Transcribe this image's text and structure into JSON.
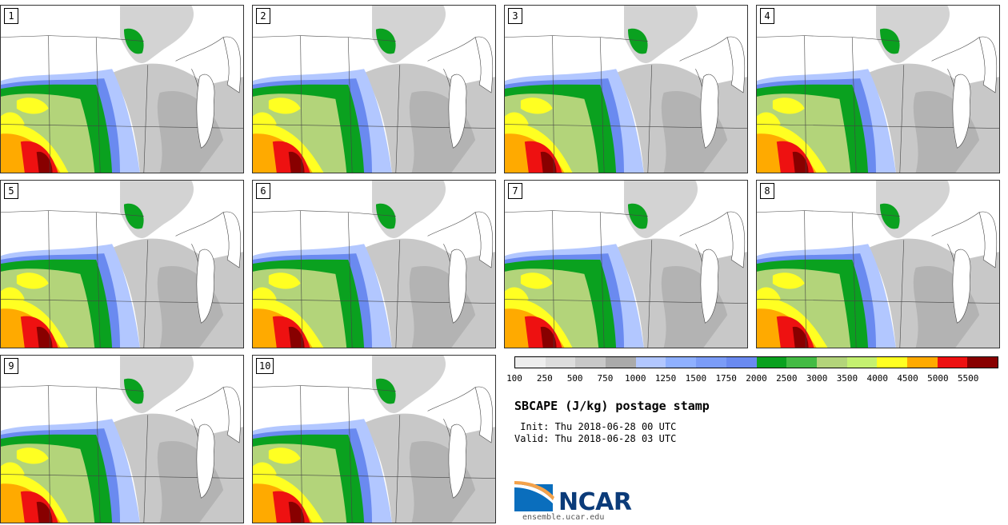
{
  "panels": [
    "1",
    "2",
    "3",
    "4",
    "5",
    "6",
    "7",
    "8",
    "9",
    "10"
  ],
  "colorbar": {
    "labels": [
      "100",
      "250",
      "500",
      "750",
      "1000",
      "1250",
      "1500",
      "1750",
      "2000",
      "2500",
      "3000",
      "3500",
      "4000",
      "4500",
      "5000",
      "5500"
    ],
    "colors": [
      "#eeeeee",
      "#dddddd",
      "#c8c8c8",
      "#aaaaaa",
      "#b2c7ff",
      "#8fb0ff",
      "#7b9cf7",
      "#6a8af0",
      "#0aa11f",
      "#44bb44",
      "#b3d47a",
      "#c4f070",
      "#ffff22",
      "#ffaa00",
      "#ee1111",
      "#880000"
    ]
  },
  "title": "SBCAPE (J/kg) postage stamp",
  "init": " Init: Thu 2018-06-28 00 UTC",
  "valid": "Valid: Thu 2018-06-28 03 UTC",
  "logo": {
    "name": "NCAR",
    "url": "ensemble.ucar.edu"
  }
}
